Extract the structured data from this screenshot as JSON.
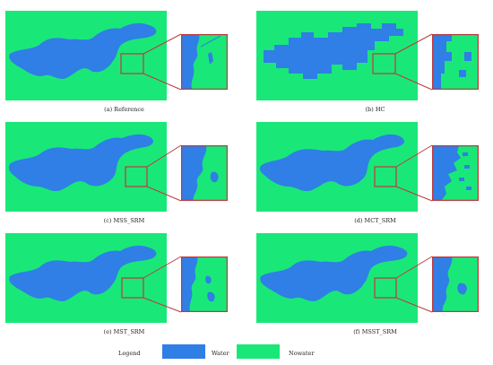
{
  "colors": {
    "water": "#2f7fe6",
    "nowater": "#19e878",
    "frame": "#c0393b"
  },
  "panels": [
    {
      "id": "a",
      "caption": "(a) Reference",
      "style": "fine"
    },
    {
      "id": "b",
      "caption": "(b) HC",
      "style": "blocky"
    },
    {
      "id": "c",
      "caption": "(c) MSS_SRM",
      "style": "smooth"
    },
    {
      "id": "d",
      "caption": "(d) MCT_SRM",
      "style": "noisy"
    },
    {
      "id": "e",
      "caption": "(e) MST_SRM",
      "style": "fine"
    },
    {
      "id": "f",
      "caption": "(f) MSST_SRM",
      "style": "fine"
    }
  ],
  "legend": {
    "title": "Legend",
    "water": "Water",
    "nowater": "Nowater"
  }
}
